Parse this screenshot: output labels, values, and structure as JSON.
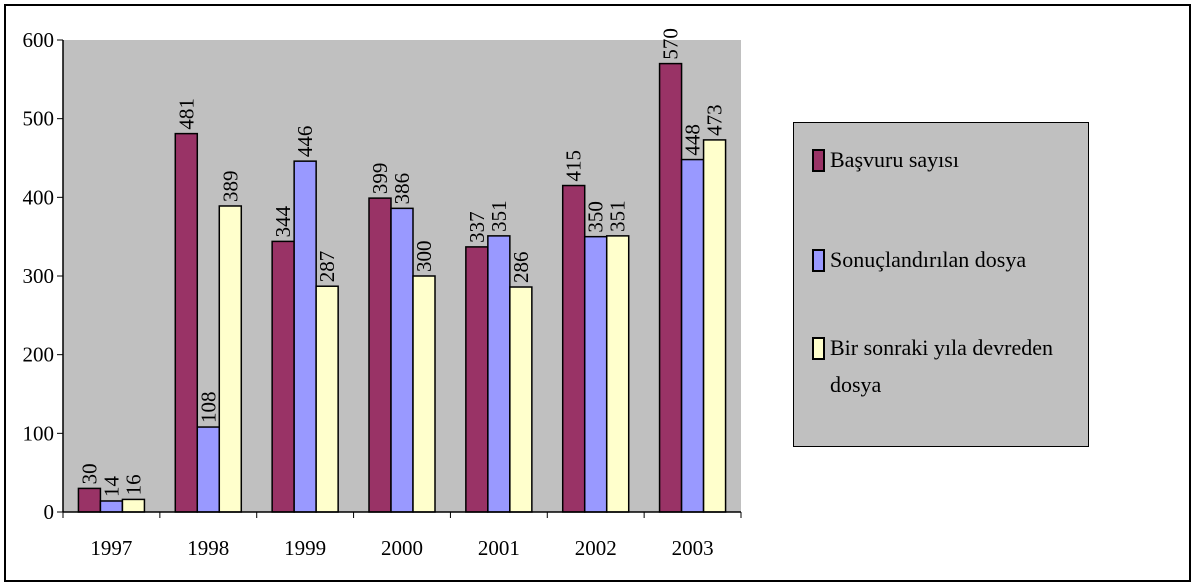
{
  "chart_data": {
    "type": "bar",
    "categories": [
      "1997",
      "1998",
      "1999",
      "2000",
      "2001",
      "2002",
      "2003"
    ],
    "series": [
      {
        "name": "Başvuru sayısı",
        "color": "#993366",
        "values": [
          30,
          481,
          344,
          399,
          337,
          415,
          570
        ]
      },
      {
        "name": "Sonuçlandırılan dosya",
        "color": "#9999ff",
        "values": [
          14,
          108,
          446,
          386,
          351,
          350,
          448
        ]
      },
      {
        "name": "Bir sonraki yıla devreden dosya",
        "color": "#ffffcc",
        "values": [
          16,
          389,
          287,
          300,
          286,
          351,
          473
        ]
      }
    ],
    "ylim": [
      0,
      600
    ],
    "yticks": [
      0,
      100,
      200,
      300,
      400,
      500,
      600
    ],
    "title": "",
    "xlabel": "",
    "ylabel": "",
    "grid": false,
    "legend": "right",
    "plot_background": "#c0c0c0"
  }
}
